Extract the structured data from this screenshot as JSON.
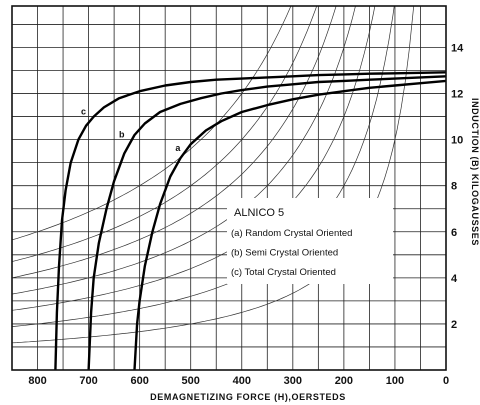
{
  "chart_data": {
    "type": "line",
    "title": "",
    "xlabel": "DEMAGNETIZING FORCE (H),OERSTEDS",
    "ylabel": "INDUCTION (B) KILOGAUSSES",
    "x_ticks": [
      "800",
      "700",
      "600",
      "500",
      "400",
      "300",
      "200",
      "100",
      "0"
    ],
    "y_ticks": [
      "2",
      "4",
      "6",
      "8",
      "10",
      "12",
      "14"
    ],
    "xlim": [
      850,
      0
    ],
    "ylim": [
      0,
      15.8
    ],
    "x_reversed": true,
    "grid": true,
    "legend": {
      "title": "ALNICO 5",
      "entries": [
        "(a) Random Crystal Oriented",
        "(b) Semi Crystal Oriented",
        "(c) Total Crystal Oriented"
      ],
      "placement": "center-right"
    },
    "series": [
      {
        "label": "a",
        "x": [
          610,
          605,
          600,
          590,
          575,
          560,
          540,
          520,
          500,
          470,
          440,
          400,
          350,
          300,
          250,
          200,
          150,
          100,
          50,
          0
        ],
        "y": [
          0,
          2.0,
          3.0,
          4.5,
          6.0,
          7.2,
          8.4,
          9.2,
          9.8,
          10.4,
          10.8,
          11.2,
          11.5,
          11.75,
          11.95,
          12.1,
          12.25,
          12.35,
          12.45,
          12.55
        ]
      },
      {
        "label": "b",
        "x": [
          700,
          695,
          690,
          680,
          665,
          650,
          630,
          610,
          590,
          560,
          520,
          480,
          440,
          400,
          350,
          300,
          250,
          200,
          150,
          100,
          50,
          0
        ],
        "y": [
          0,
          2.5,
          4.0,
          5.5,
          7.0,
          8.2,
          9.4,
          10.2,
          10.7,
          11.2,
          11.55,
          11.8,
          12.0,
          12.15,
          12.3,
          12.4,
          12.5,
          12.55,
          12.6,
          12.65,
          12.7,
          12.75
        ]
      },
      {
        "label": "c",
        "x": [
          765,
          762,
          758,
          752,
          745,
          735,
          720,
          705,
          690,
          670,
          640,
          600,
          550,
          500,
          450,
          400,
          350,
          300,
          250,
          200,
          150,
          100,
          50,
          0
        ],
        "y": [
          0,
          2.5,
          4.5,
          6.5,
          7.8,
          9.0,
          10.0,
          10.6,
          11.0,
          11.4,
          11.8,
          12.1,
          12.35,
          12.5,
          12.6,
          12.65,
          12.7,
          12.75,
          12.8,
          12.83,
          12.86,
          12.88,
          12.9,
          12.92
        ]
      }
    ]
  }
}
